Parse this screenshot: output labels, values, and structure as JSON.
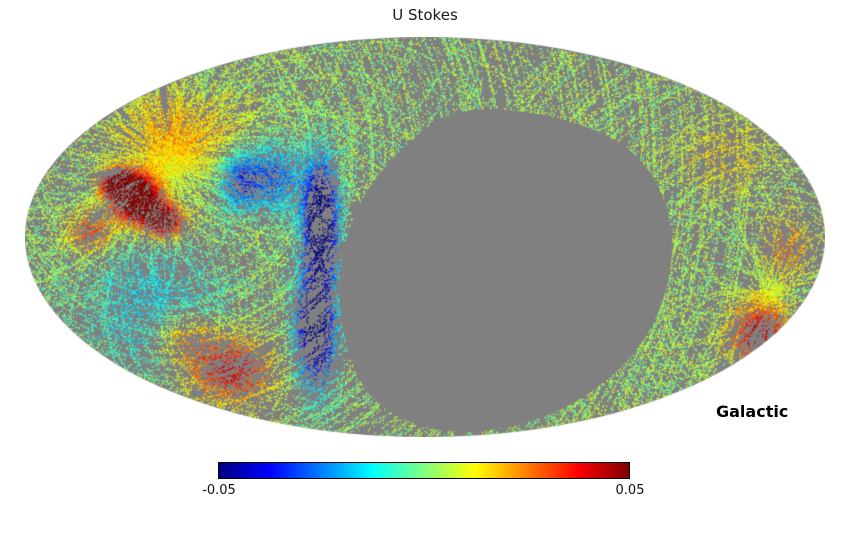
{
  "chart_data": {
    "type": "heatmap",
    "projection": "mollweide",
    "title": "U Stokes",
    "coordinate_label": "Galactic",
    "colormap": "jet",
    "vmin": -0.05,
    "vmax": 0.05,
    "colorbar": {
      "orientation": "horizontal",
      "min_label": "-0.05",
      "max_label": "0.05"
    },
    "unseen_color": "#808080",
    "background_color": "#ffffff",
    "colormap_stops": [
      {
        "pos": 0.0,
        "color": "#000080"
      },
      {
        "pos": 0.125,
        "color": "#0000ff"
      },
      {
        "pos": 0.375,
        "color": "#00ffff"
      },
      {
        "pos": 0.625,
        "color": "#ffff00"
      },
      {
        "pos": 0.875,
        "color": "#ff0000"
      },
      {
        "pos": 1.0,
        "color": "#800000"
      }
    ]
  }
}
